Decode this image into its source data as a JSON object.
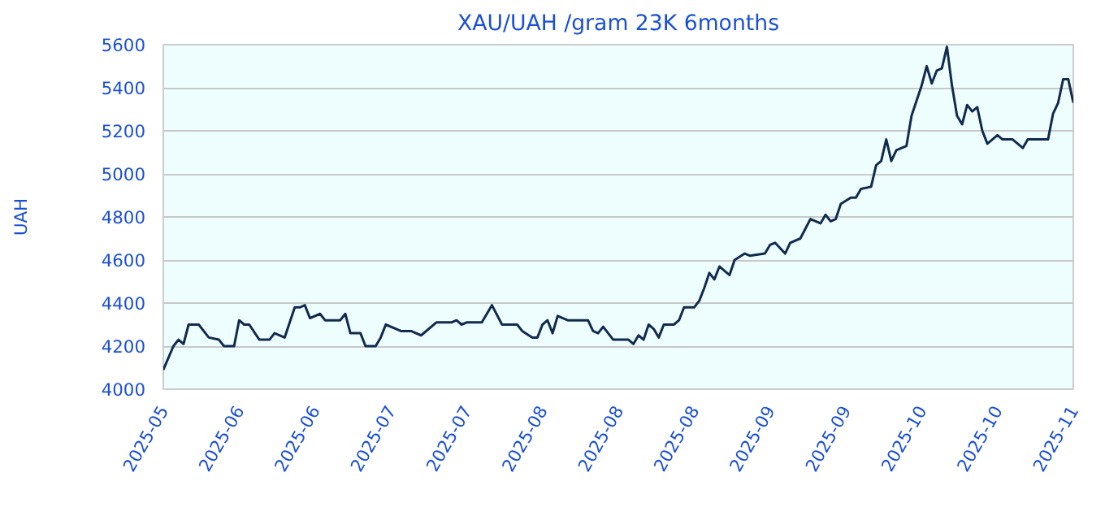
{
  "chart_data": {
    "type": "line",
    "title": "XAU/UAH /gram 23K 6months",
    "ylabel": "UAH",
    "x": [
      "2025-05-18",
      "2025-05-20",
      "2025-05-21",
      "2025-05-22",
      "2025-05-23",
      "2025-05-25",
      "2025-05-27",
      "2025-05-29",
      "2025-05-30",
      "2025-06-01",
      "2025-06-02",
      "2025-06-03",
      "2025-06-04",
      "2025-06-06",
      "2025-06-08",
      "2025-06-09",
      "2025-06-11",
      "2025-06-13",
      "2025-06-14",
      "2025-06-15",
      "2025-06-16",
      "2025-06-18",
      "2025-06-19",
      "2025-06-22",
      "2025-06-23",
      "2025-06-24",
      "2025-06-26",
      "2025-06-27",
      "2025-06-29",
      "2025-06-30",
      "2025-07-01",
      "2025-07-04",
      "2025-07-06",
      "2025-07-08",
      "2025-07-11",
      "2025-07-14",
      "2025-07-15",
      "2025-07-16",
      "2025-07-17",
      "2025-07-19",
      "2025-07-20",
      "2025-07-22",
      "2025-07-24",
      "2025-07-27",
      "2025-07-28",
      "2025-07-30",
      "2025-07-31",
      "2025-08-01",
      "2025-08-02",
      "2025-08-03",
      "2025-08-04",
      "2025-08-06",
      "2025-08-10",
      "2025-08-11",
      "2025-08-12",
      "2025-08-13",
      "2025-08-15",
      "2025-08-18",
      "2025-08-19",
      "2025-08-20",
      "2025-08-21",
      "2025-08-22",
      "2025-08-23",
      "2025-08-24",
      "2025-08-25",
      "2025-08-27",
      "2025-08-28",
      "2025-08-29",
      "2025-08-31",
      "2025-09-01",
      "2025-09-02",
      "2025-09-03",
      "2025-09-04",
      "2025-09-05",
      "2025-09-07",
      "2025-09-08",
      "2025-09-10",
      "2025-09-11",
      "2025-09-14",
      "2025-09-15",
      "2025-09-16",
      "2025-09-18",
      "2025-09-19",
      "2025-09-21",
      "2025-09-23",
      "2025-09-25",
      "2025-09-26",
      "2025-09-27",
      "2025-09-28",
      "2025-09-29",
      "2025-10-01",
      "2025-10-02",
      "2025-10-03",
      "2025-10-05",
      "2025-10-06",
      "2025-10-07",
      "2025-10-08",
      "2025-10-09",
      "2025-10-10",
      "2025-10-12",
      "2025-10-13",
      "2025-10-15",
      "2025-10-16",
      "2025-10-17",
      "2025-10-18",
      "2025-10-19",
      "2025-10-20",
      "2025-10-21",
      "2025-10-22",
      "2025-10-23",
      "2025-10-24",
      "2025-10-25",
      "2025-10-26",
      "2025-10-27",
      "2025-10-28",
      "2025-10-30",
      "2025-10-31",
      "2025-11-02",
      "2025-11-03",
      "2025-11-04",
      "2025-11-05",
      "2025-11-09",
      "2025-11-10",
      "2025-11-11",
      "2025-11-12",
      "2025-11-13",
      "2025-11-14"
    ],
    "values": [
      4090,
      4200,
      4230,
      4210,
      4300,
      4300,
      4240,
      4230,
      4200,
      4200,
      4320,
      4300,
      4300,
      4230,
      4230,
      4260,
      4240,
      4380,
      4380,
      4390,
      4330,
      4350,
      4320,
      4320,
      4350,
      4260,
      4260,
      4200,
      4200,
      4240,
      4300,
      4270,
      4270,
      4250,
      4310,
      4310,
      4320,
      4300,
      4310,
      4310,
      4310,
      4390,
      4300,
      4300,
      4270,
      4240,
      4240,
      4300,
      4320,
      4260,
      4340,
      4320,
      4320,
      4270,
      4260,
      4290,
      4230,
      4230,
      4210,
      4250,
      4230,
      4300,
      4280,
      4240,
      4300,
      4300,
      4320,
      4380,
      4380,
      4410,
      4470,
      4540,
      4510,
      4570,
      4530,
      4600,
      4630,
      4620,
      4630,
      4670,
      4680,
      4630,
      4680,
      4700,
      4790,
      4770,
      4810,
      4780,
      4790,
      4860,
      4890,
      4890,
      4930,
      4940,
      5040,
      5060,
      5160,
      5060,
      5110,
      5130,
      5270,
      5410,
      5500,
      5420,
      5480,
      5490,
      5590,
      5410,
      5270,
      5230,
      5320,
      5290,
      5310,
      5200,
      5140,
      5180,
      5160,
      5160,
      5140,
      5120,
      5160,
      5160,
      5280,
      5330,
      5440,
      5440,
      5330
    ],
    "color": "#112b4f",
    "xlim": [
      "2025-05-18",
      "2025-11-14"
    ],
    "xticks": [
      {
        "value": "2025-05-18",
        "label": "2025-05"
      },
      {
        "value": "2025-06-02",
        "label": "2025-06"
      },
      {
        "value": "2025-06-17",
        "label": "2025-06"
      },
      {
        "value": "2025-07-02",
        "label": "2025-07"
      },
      {
        "value": "2025-07-17",
        "label": "2025-07"
      },
      {
        "value": "2025-08-01",
        "label": "2025-08"
      },
      {
        "value": "2025-08-16",
        "label": "2025-08"
      },
      {
        "value": "2025-08-31",
        "label": "2025-08"
      },
      {
        "value": "2025-09-15",
        "label": "2025-09"
      },
      {
        "value": "2025-09-30",
        "label": "2025-09"
      },
      {
        "value": "2025-10-15",
        "label": "2025-10"
      },
      {
        "value": "2025-10-30",
        "label": "2025-10"
      },
      {
        "value": "2025-11-14",
        "label": "2025-11"
      }
    ],
    "ylim": [
      4000,
      5600
    ],
    "yticks": [
      4000,
      4200,
      4400,
      4600,
      4800,
      5000,
      5200,
      5400,
      5600
    ],
    "grid": "y"
  }
}
